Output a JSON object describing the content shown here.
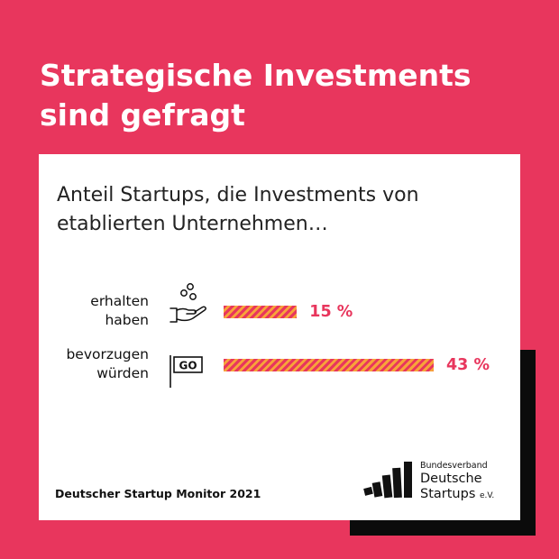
{
  "title": {
    "line1": "Strategische Investments",
    "line2": "sind gefragt"
  },
  "subtitle": {
    "line1": "Anteil Startups, die Investments von",
    "line2": "etablierten Unternehmen…"
  },
  "source": "Deutscher Startup Monitor 2021",
  "logo": {
    "line1": "Bundesverband",
    "line2": "Deutsche",
    "line3": "Startups",
    "suffix": "e.V."
  },
  "colors": {
    "background": "#e8365d",
    "accent": "#e8365d",
    "stripe": "#f7a43a",
    "shadow": "#0b0b0b"
  },
  "chart_data": {
    "type": "bar",
    "orientation": "horizontal",
    "title": "Anteil Startups, die Investments von etablierten Unternehmen…",
    "categories": [
      "erhalten haben",
      "bevorzugen würden"
    ],
    "category_lines": [
      [
        "erhalten",
        "haben"
      ],
      [
        "bevorzugen",
        "würden"
      ]
    ],
    "values": [
      15,
      43
    ],
    "value_labels": [
      "15 %",
      "43 %"
    ],
    "icons": [
      "hand-coins-icon",
      "go-flag-icon"
    ],
    "xlim": [
      0,
      100
    ],
    "grid": false,
    "legend": "none"
  }
}
